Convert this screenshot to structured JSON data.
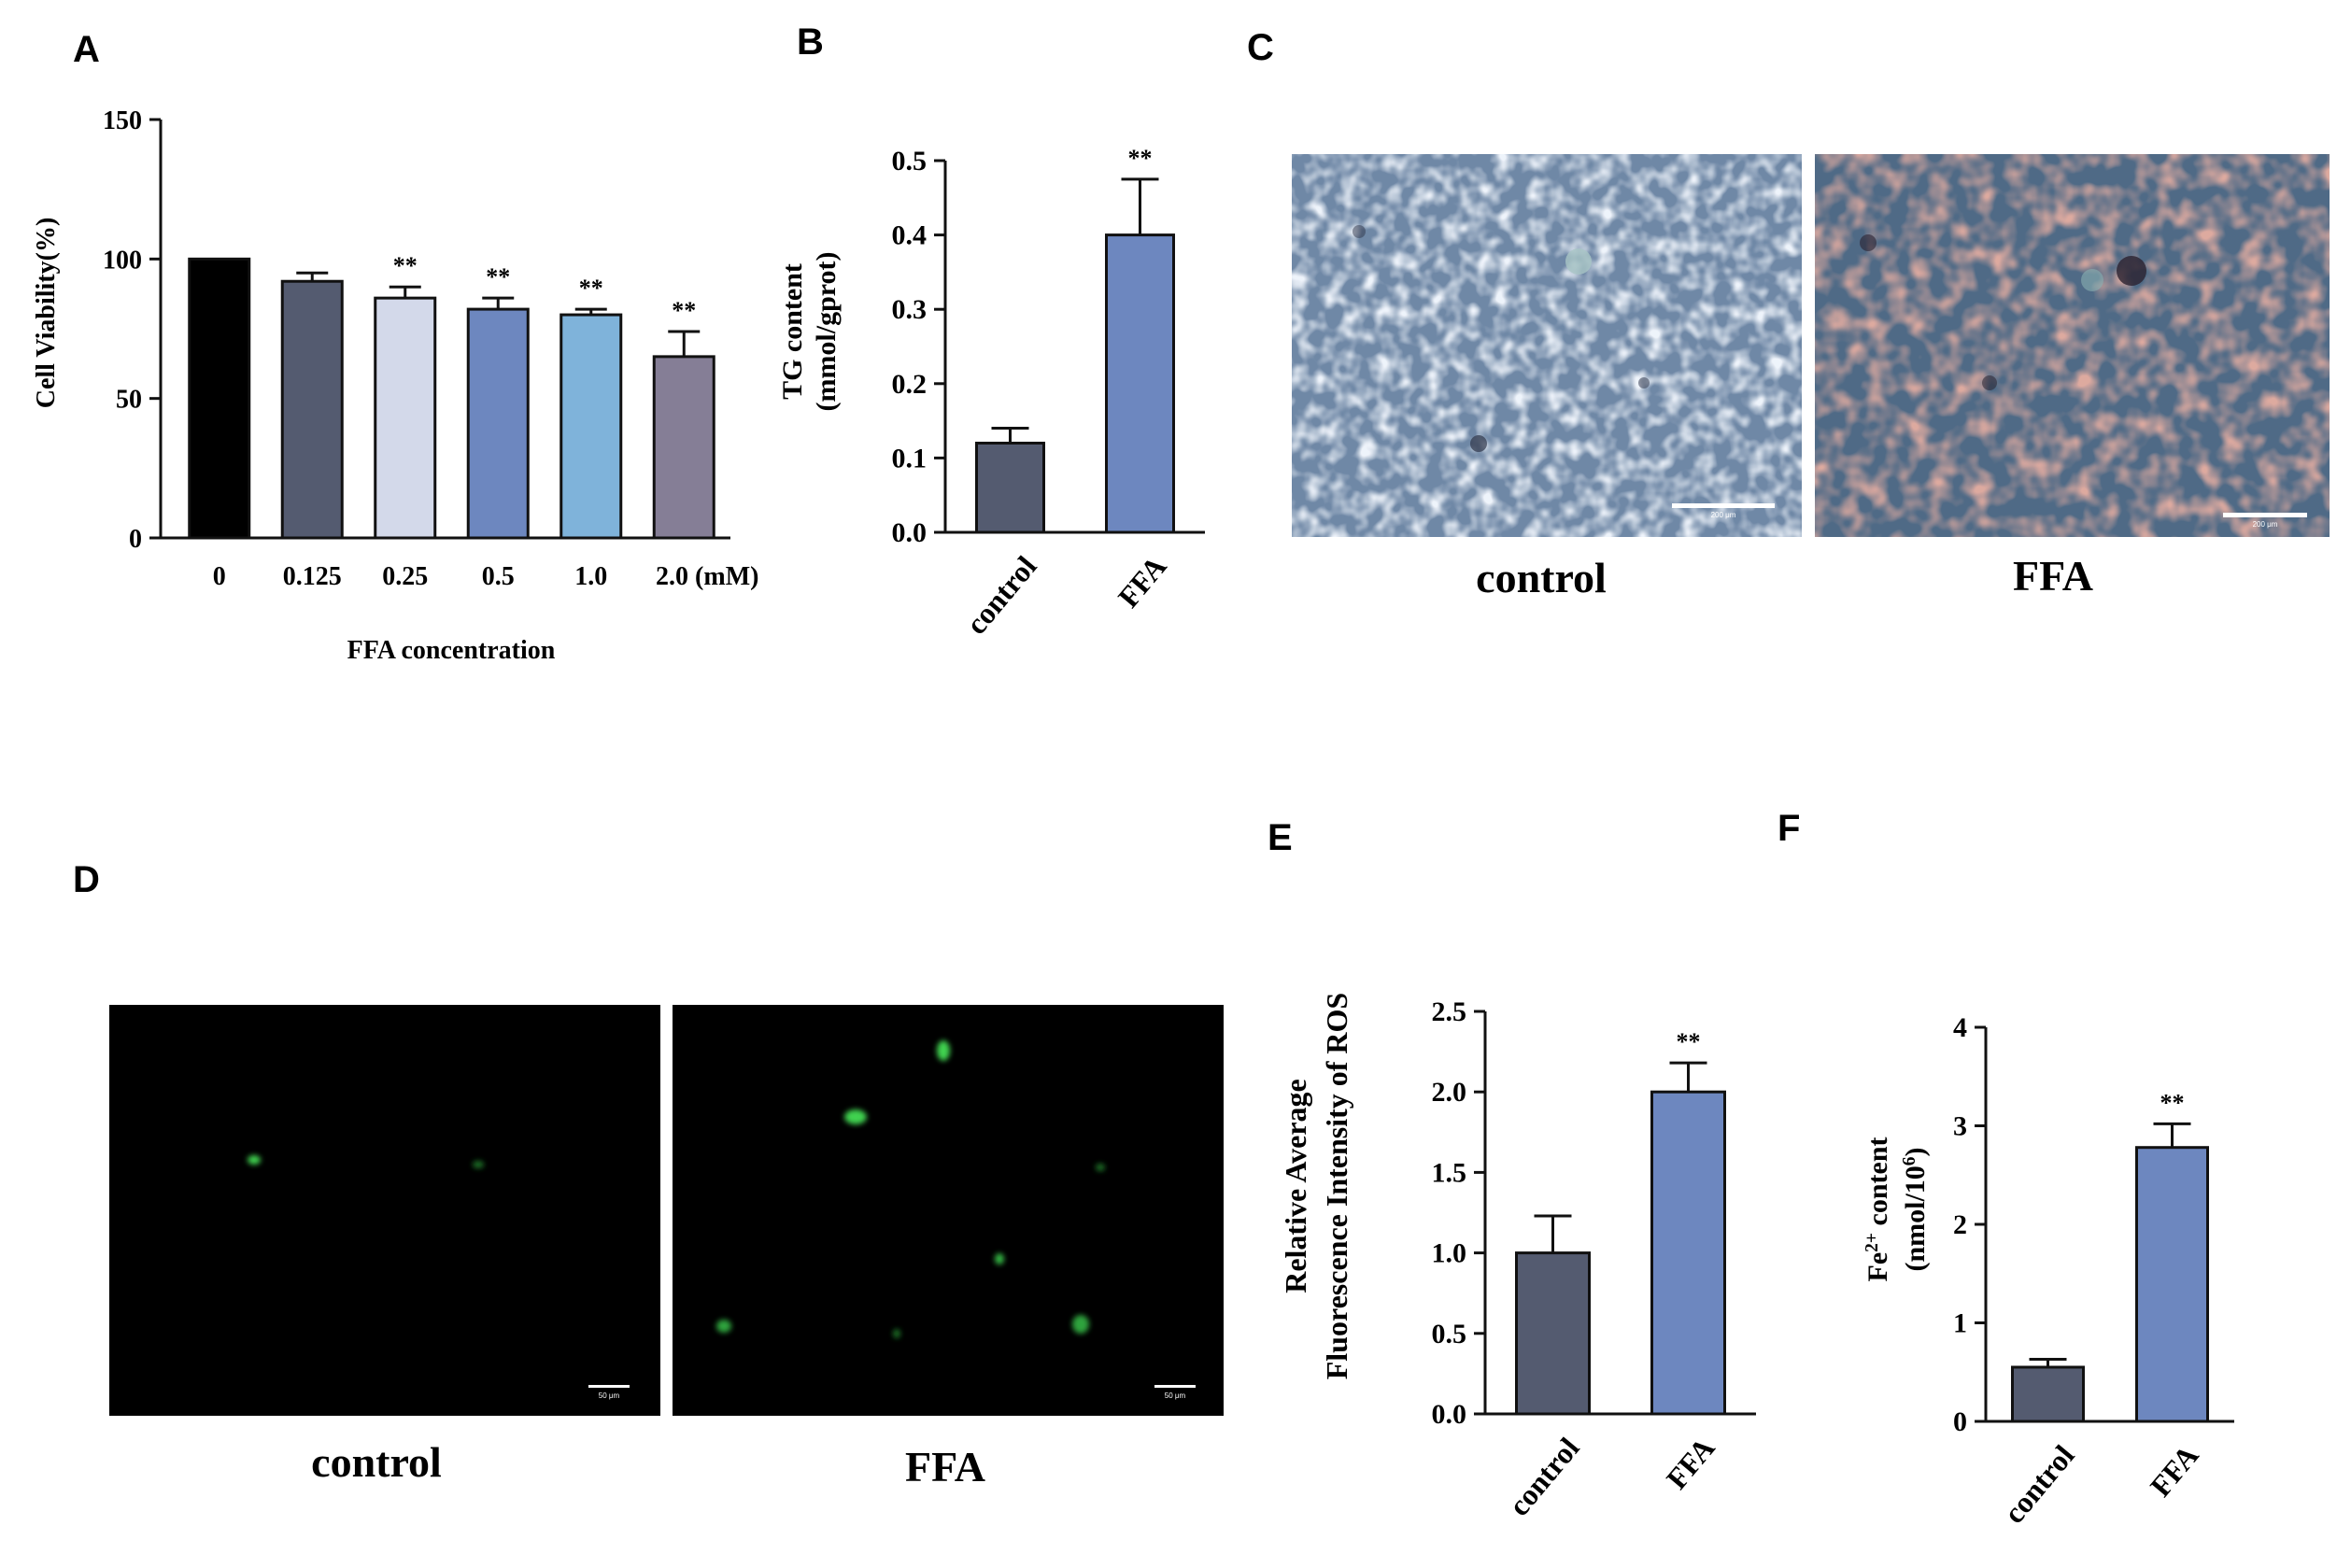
{
  "panel_letters": [
    "A",
    "B",
    "C",
    "D",
    "E",
    "F"
  ],
  "colors": {
    "control": "#545b70",
    "ffa": "#6d87bf",
    "axis": "#111111",
    "he_bg": "#6b87a8",
    "fluor_bg": "#000000",
    "fluor_cell": "#3fd14f"
  },
  "chart_data": [
    {
      "panel": "A",
      "type": "bar",
      "categories": [
        "0",
        "0.125",
        "0.25",
        "0.5",
        "1.0",
        "2.0 (mM)"
      ],
      "values": [
        100,
        92,
        86,
        82,
        80,
        65
      ],
      "errors": [
        0,
        3,
        4,
        4,
        2,
        9
      ],
      "significance": [
        "",
        "",
        "**",
        "**",
        "**",
        "**"
      ],
      "bar_colors": [
        "#000000",
        "#545b70",
        "#d3d9ea",
        "#6d87bf",
        "#7fb3da",
        "#857e96"
      ],
      "xlabel": "FFA concentration",
      "ylabel": "Cell Viability(%)",
      "ylim": [
        0,
        150
      ],
      "yticks": [
        "0",
        "50",
        "100",
        "150"
      ],
      "grid": false
    },
    {
      "panel": "B",
      "type": "bar",
      "categories": [
        "control",
        "FFA"
      ],
      "values": [
        0.12,
        0.4
      ],
      "errors": [
        0.02,
        0.075
      ],
      "significance": [
        "",
        "**"
      ],
      "ylabel_lines": [
        "TG content",
        "(mmol/gprot)"
      ],
      "ylim": [
        0,
        0.5
      ],
      "yticks": [
        "0.0",
        "0.1",
        "0.2",
        "0.3",
        "0.4",
        "0.5"
      ],
      "grid": false
    },
    {
      "panel": "E",
      "type": "bar",
      "categories": [
        "control",
        "FFA"
      ],
      "values": [
        1.0,
        2.0
      ],
      "errors": [
        0.23,
        0.18
      ],
      "significance": [
        "",
        "**"
      ],
      "ylabel_lines": [
        "Relative Average",
        "Fluorescence Intensity of ROS"
      ],
      "ylim": [
        0,
        2.5
      ],
      "yticks": [
        "0.0",
        "0.5",
        "1.0",
        "1.5",
        "2.0",
        "2.5"
      ],
      "grid": false
    },
    {
      "panel": "F",
      "type": "bar",
      "categories": [
        "control",
        "FFA"
      ],
      "values": [
        0.55,
        2.78
      ],
      "errors": [
        0.08,
        0.24
      ],
      "significance": [
        "",
        "**"
      ],
      "ylabel_lines": [
        "Fe2+ content",
        "(nmol/106)"
      ],
      "ylim": [
        0,
        4
      ],
      "yticks": [
        "0",
        "1",
        "2",
        "3",
        "4"
      ],
      "grid": false
    }
  ],
  "micrographs": {
    "C": {
      "labels": [
        "control",
        "FFA"
      ],
      "scale_bar": "200 μm"
    },
    "D": {
      "labels": [
        "control",
        "FFA"
      ],
      "scale_bar": "50 μm"
    }
  }
}
